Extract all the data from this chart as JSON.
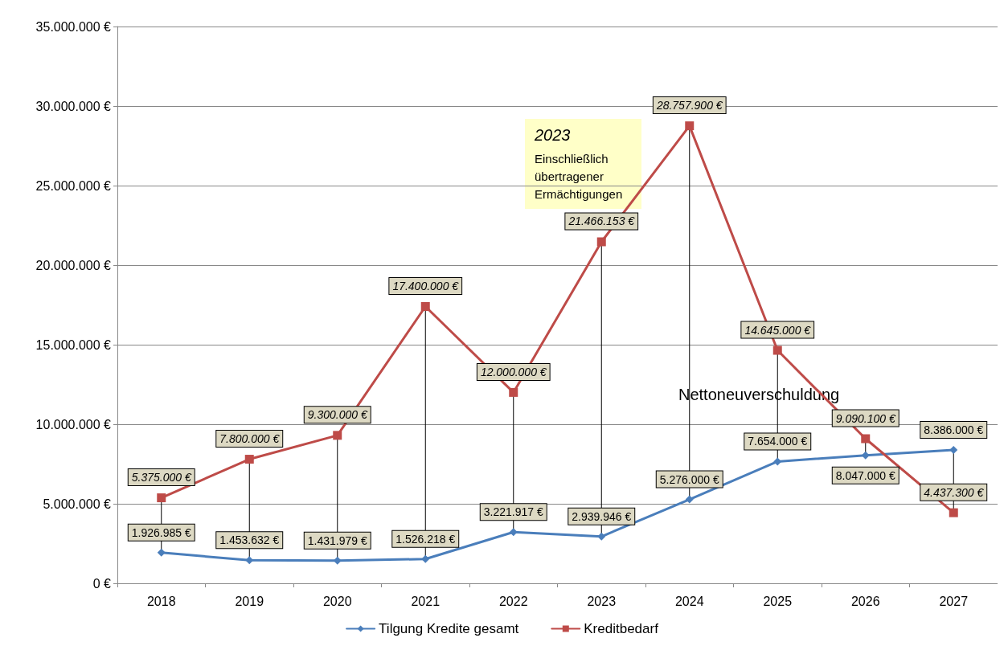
{
  "chart_data": {
    "type": "line",
    "categories": [
      "2018",
      "2019",
      "2020",
      "2021",
      "2022",
      "2023",
      "2024",
      "2025",
      "2026",
      "2027"
    ],
    "series": [
      {
        "name": "Tilgung Kredite gesamt",
        "color": "#4a7ebb",
        "marker": "diamond",
        "values": [
          1926985,
          1453632,
          1431979,
          1526218,
          3221917,
          2939946,
          5276000,
          7654000,
          8047000,
          8386000
        ],
        "value_labels": [
          "1.926.985 €",
          "1.453.632 €",
          "1.431.979 €",
          "1.526.218 €",
          "3.221.917 €",
          "2.939.946 €",
          "5.276.000 €",
          "7.654.000 €",
          "8.047.000 €",
          "8.386.000 €"
        ]
      },
      {
        "name": "Kreditbedarf",
        "color": "#be4b48",
        "marker": "square",
        "values": [
          5375000,
          7800000,
          9300000,
          17400000,
          12000000,
          21466153,
          28757900,
          14645000,
          9090100,
          4437300
        ],
        "value_labels": [
          "5.375.000 €",
          "7.800.000 €",
          "9.300.000 €",
          "17.400.000 €",
          "12.000.000 €",
          "21.466.153 €",
          "28.757.900 €",
          "14.645.000 €",
          "9.090.100 €",
          "4.437.300 €"
        ]
      }
    ],
    "ylim": [
      0,
      35000000
    ],
    "yticks": [
      {
        "value": 0,
        "label": "0 €"
      },
      {
        "value": 5000000,
        "label": "5.000.000 €"
      },
      {
        "value": 10000000,
        "label": "10.000.000 €"
      },
      {
        "value": 15000000,
        "label": "15.000.000 €"
      },
      {
        "value": 20000000,
        "label": "20.000.000 €"
      },
      {
        "value": 25000000,
        "label": "25.000.000 €"
      },
      {
        "value": 30000000,
        "label": "30.000.000 €"
      },
      {
        "value": 35000000,
        "label": "35.000.000 €"
      }
    ],
    "annotations": [
      "2023\nEinschließlich übertragener Ermächtigungen",
      "Nettoneuverschuldung"
    ],
    "grid": "y",
    "legend": "bottom",
    "line_style": "solid"
  }
}
